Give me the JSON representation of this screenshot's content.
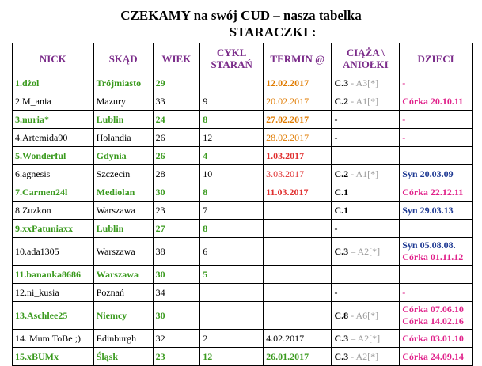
{
  "header": {
    "title": "CZEKAMY na swój CUD – nasza tabelka",
    "subtitle": "STARACZKI :"
  },
  "table": {
    "columns": [
      "NICK",
      "SKĄD",
      "WIEK",
      "CYKL STARAŃ",
      "TERMIN @",
      "CIĄŻA \\ ANIOŁKI",
      "DZIECI"
    ],
    "rows": [
      [
        "1.dżol",
        "Trójmiasto",
        "29",
        null,
        "12.02.2017",
        [
          "C.3",
          "-",
          "A3[*]"
        ],
        [
          "-"
        ]
      ],
      [
        "2.M_ania",
        "Mazury",
        "33",
        "9",
        "20.02.2017",
        [
          "C.2",
          "-",
          "A1[*]"
        ],
        [
          "Córka 20.10.11"
        ]
      ],
      [
        "3.nuria*",
        "Lublin",
        "24",
        "8",
        "27.02.2017",
        [
          "-"
        ],
        [
          "-"
        ]
      ],
      [
        "4.Artemida90",
        "Holandia",
        "26",
        "12",
        "28.02.2017",
        [
          "-"
        ],
        [
          "-"
        ]
      ],
      [
        "5.Wonderful",
        "Gdynia",
        "26",
        "4",
        "1.03.2017",
        null,
        null
      ],
      [
        "6.agnesis",
        "Szczecin",
        "28",
        "10",
        "3.03.2017",
        [
          "C.2",
          "-",
          "A1[*]"
        ],
        [
          "Syn 20.03.09"
        ]
      ],
      [
        "7.Carmen24l",
        "Mediolan",
        "30",
        "8",
        "11.03.2017",
        [
          "C.1"
        ],
        [
          "Córka 22.12.11"
        ]
      ],
      [
        "8.Zuzkon",
        "Warszawa",
        "23",
        "7",
        null,
        [
          "C.1"
        ],
        [
          "Syn 29.03.13"
        ]
      ],
      [
        "9.xxPatuniaxx",
        "Lublin",
        "27",
        "8",
        null,
        [
          "-"
        ],
        null
      ],
      [
        "10.ada1305",
        "Warszawa",
        "38",
        "6",
        null,
        [
          "C.3",
          "–",
          "A2[*]"
        ],
        [
          "Syn 05.08.08.",
          "Córka 01.11.12"
        ]
      ],
      [
        "11.bananka8686",
        "Warszawa",
        "30",
        "5",
        null,
        null,
        null
      ],
      [
        "12.ni_kusia",
        "Poznań",
        "34",
        null,
        null,
        [
          "-"
        ],
        [
          "-"
        ]
      ],
      [
        "13.Aschlee25",
        "Niemcy",
        "30",
        null,
        null,
        [
          "C.8",
          "-",
          "A6[*]"
        ],
        [
          "Córka 07.06.10",
          "Córka 14.02.16"
        ]
      ],
      [
        "14. Mum ToBe ;)",
        "Edinburgh",
        "32",
        "2",
        "4.02.2017",
        [
          "C.3",
          "–",
          "A2[*]"
        ],
        [
          "Córka 03.01.10"
        ]
      ],
      [
        "15.xBUMx",
        "Śląsk",
        "23",
        "12",
        "26.01.2017",
        [
          "C.3",
          "-",
          "A2[*]"
        ],
        [
          "Córka 24.09.14"
        ]
      ]
    ]
  }
}
